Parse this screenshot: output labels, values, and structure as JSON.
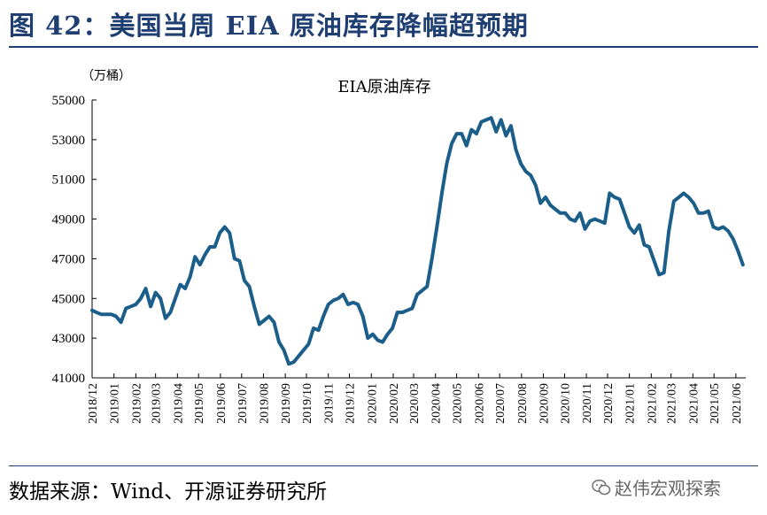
{
  "figure": {
    "title": "图 42：美国当周 EIA 原油库存降幅超预期",
    "source": "数据来源：Wind、开源证券研究所",
    "watermark": "赵伟宏观探索",
    "watermark_icon": "wechat-icon",
    "accent_color": "#1f3f73"
  },
  "chart_data": {
    "type": "line",
    "title": "EIA原油库存",
    "unit_label": "（万桶）",
    "ylim": [
      41000,
      55000
    ],
    "yticks": [
      41000,
      43000,
      45000,
      47000,
      49000,
      51000,
      53000,
      55000
    ],
    "x_tick_labels": [
      "2018/12",
      "2019/01",
      "2019/02",
      "2019/03",
      "2019/04",
      "2019/05",
      "2019/06",
      "2019/07",
      "2019/08",
      "2019/09",
      "2019/10",
      "2019/11",
      "2019/12",
      "2020/01",
      "2020/02",
      "2020/03",
      "2020/04",
      "2020/05",
      "2020/06",
      "2020/07",
      "2020/08",
      "2020/09",
      "2020/10",
      "2020/11",
      "2020/12",
      "2021/01",
      "2021/02",
      "2021/03",
      "2021/04",
      "2021/05",
      "2021/06"
    ],
    "grid": false,
    "series": [
      {
        "color": "#1b5e8a",
        "points": [
          [
            "2018/12/01",
            44400
          ],
          [
            "2018/12/07",
            44300
          ],
          [
            "2018/12/14",
            44200
          ],
          [
            "2018/12/21",
            44200
          ],
          [
            "2018/12/28",
            44200
          ],
          [
            "2019/01/04",
            44100
          ],
          [
            "2019/01/11",
            43800
          ],
          [
            "2019/01/18",
            44500
          ],
          [
            "2019/01/25",
            44600
          ],
          [
            "2019/02/01",
            44700
          ],
          [
            "2019/02/08",
            45000
          ],
          [
            "2019/02/15",
            45500
          ],
          [
            "2019/02/22",
            44600
          ],
          [
            "2019/03/01",
            45300
          ],
          [
            "2019/03/08",
            45000
          ],
          [
            "2019/03/15",
            44000
          ],
          [
            "2019/03/22",
            44300
          ],
          [
            "2019/03/29",
            45000
          ],
          [
            "2019/04/05",
            45700
          ],
          [
            "2019/04/12",
            45500
          ],
          [
            "2019/04/19",
            46100
          ],
          [
            "2019/04/26",
            47100
          ],
          [
            "2019/05/03",
            46700
          ],
          [
            "2019/05/10",
            47200
          ],
          [
            "2019/05/17",
            47600
          ],
          [
            "2019/05/24",
            47600
          ],
          [
            "2019/05/31",
            48300
          ],
          [
            "2019/06/07",
            48600
          ],
          [
            "2019/06/14",
            48300
          ],
          [
            "2019/06/21",
            47000
          ],
          [
            "2019/06/28",
            46900
          ],
          [
            "2019/07/05",
            45900
          ],
          [
            "2019/07/12",
            45600
          ],
          [
            "2019/07/19",
            44600
          ],
          [
            "2019/07/26",
            43700
          ],
          [
            "2019/08/02",
            43900
          ],
          [
            "2019/08/09",
            44100
          ],
          [
            "2019/08/16",
            43800
          ],
          [
            "2019/08/23",
            42800
          ],
          [
            "2019/08/30",
            42400
          ],
          [
            "2019/09/06",
            41700
          ],
          [
            "2019/09/13",
            41800
          ],
          [
            "2019/09/20",
            42100
          ],
          [
            "2019/09/27",
            42400
          ],
          [
            "2019/10/04",
            42700
          ],
          [
            "2019/10/11",
            43500
          ],
          [
            "2019/10/18",
            43400
          ],
          [
            "2019/10/25",
            44100
          ],
          [
            "2019/11/01",
            44700
          ],
          [
            "2019/11/08",
            44900
          ],
          [
            "2019/11/15",
            45000
          ],
          [
            "2019/11/22",
            45200
          ],
          [
            "2019/11/29",
            44700
          ],
          [
            "2019/12/06",
            44800
          ],
          [
            "2019/12/13",
            44700
          ],
          [
            "2019/12/20",
            44100
          ],
          [
            "2019/12/27",
            43000
          ],
          [
            "2020/01/03",
            43200
          ],
          [
            "2020/01/10",
            42900
          ],
          [
            "2020/01/17",
            42800
          ],
          [
            "2020/01/24",
            43200
          ],
          [
            "2020/01/31",
            43500
          ],
          [
            "2020/02/07",
            44300
          ],
          [
            "2020/02/14",
            44300
          ],
          [
            "2020/02/21",
            44400
          ],
          [
            "2020/02/28",
            44500
          ],
          [
            "2020/03/06",
            45200
          ],
          [
            "2020/03/13",
            45400
          ],
          [
            "2020/03/20",
            45600
          ],
          [
            "2020/03/27",
            47000
          ],
          [
            "2020/04/03",
            48600
          ],
          [
            "2020/04/10",
            50300
          ],
          [
            "2020/04/17",
            51800
          ],
          [
            "2020/04/24",
            52800
          ],
          [
            "2020/05/01",
            53300
          ],
          [
            "2020/05/08",
            53300
          ],
          [
            "2020/05/15",
            52700
          ],
          [
            "2020/05/22",
            53500
          ],
          [
            "2020/05/29",
            53300
          ],
          [
            "2020/06/05",
            53900
          ],
          [
            "2020/06/12",
            54000
          ],
          [
            "2020/06/19",
            54100
          ],
          [
            "2020/06/26",
            53400
          ],
          [
            "2020/07/03",
            54000
          ],
          [
            "2020/07/10",
            53200
          ],
          [
            "2020/07/17",
            53700
          ],
          [
            "2020/07/24",
            52500
          ],
          [
            "2020/07/31",
            51800
          ],
          [
            "2020/08/07",
            51400
          ],
          [
            "2020/08/14",
            51200
          ],
          [
            "2020/08/21",
            50700
          ],
          [
            "2020/08/28",
            49800
          ],
          [
            "2020/09/04",
            50100
          ],
          [
            "2020/09/11",
            49700
          ],
          [
            "2020/09/18",
            49500
          ],
          [
            "2020/09/25",
            49300
          ],
          [
            "2020/10/02",
            49300
          ],
          [
            "2020/10/09",
            49000
          ],
          [
            "2020/10/16",
            48900
          ],
          [
            "2020/10/23",
            49300
          ],
          [
            "2020/10/30",
            48500
          ],
          [
            "2020/11/06",
            48900
          ],
          [
            "2020/11/13",
            49000
          ],
          [
            "2020/11/20",
            48900
          ],
          [
            "2020/11/27",
            48800
          ],
          [
            "2020/12/04",
            50300
          ],
          [
            "2020/12/11",
            50100
          ],
          [
            "2020/12/18",
            50000
          ],
          [
            "2020/12/25",
            49300
          ],
          [
            "2021/01/01",
            48600
          ],
          [
            "2021/01/08",
            48300
          ],
          [
            "2021/01/15",
            48700
          ],
          [
            "2021/01/22",
            47700
          ],
          [
            "2021/01/29",
            47600
          ],
          [
            "2021/02/05",
            46900
          ],
          [
            "2021/02/12",
            46200
          ],
          [
            "2021/02/19",
            46300
          ],
          [
            "2021/02/26",
            48400
          ],
          [
            "2021/03/05",
            49900
          ],
          [
            "2021/03/12",
            50100
          ],
          [
            "2021/03/19",
            50300
          ],
          [
            "2021/03/26",
            50100
          ],
          [
            "2021/04/02",
            49800
          ],
          [
            "2021/04/09",
            49300
          ],
          [
            "2021/04/16",
            49300
          ],
          [
            "2021/04/23",
            49400
          ],
          [
            "2021/04/30",
            48600
          ],
          [
            "2021/05/07",
            48500
          ],
          [
            "2021/05/14",
            48600
          ],
          [
            "2021/05/21",
            48400
          ],
          [
            "2021/05/28",
            48000
          ],
          [
            "2021/06/04",
            47400
          ],
          [
            "2021/06/11",
            46700
          ]
        ]
      }
    ]
  }
}
